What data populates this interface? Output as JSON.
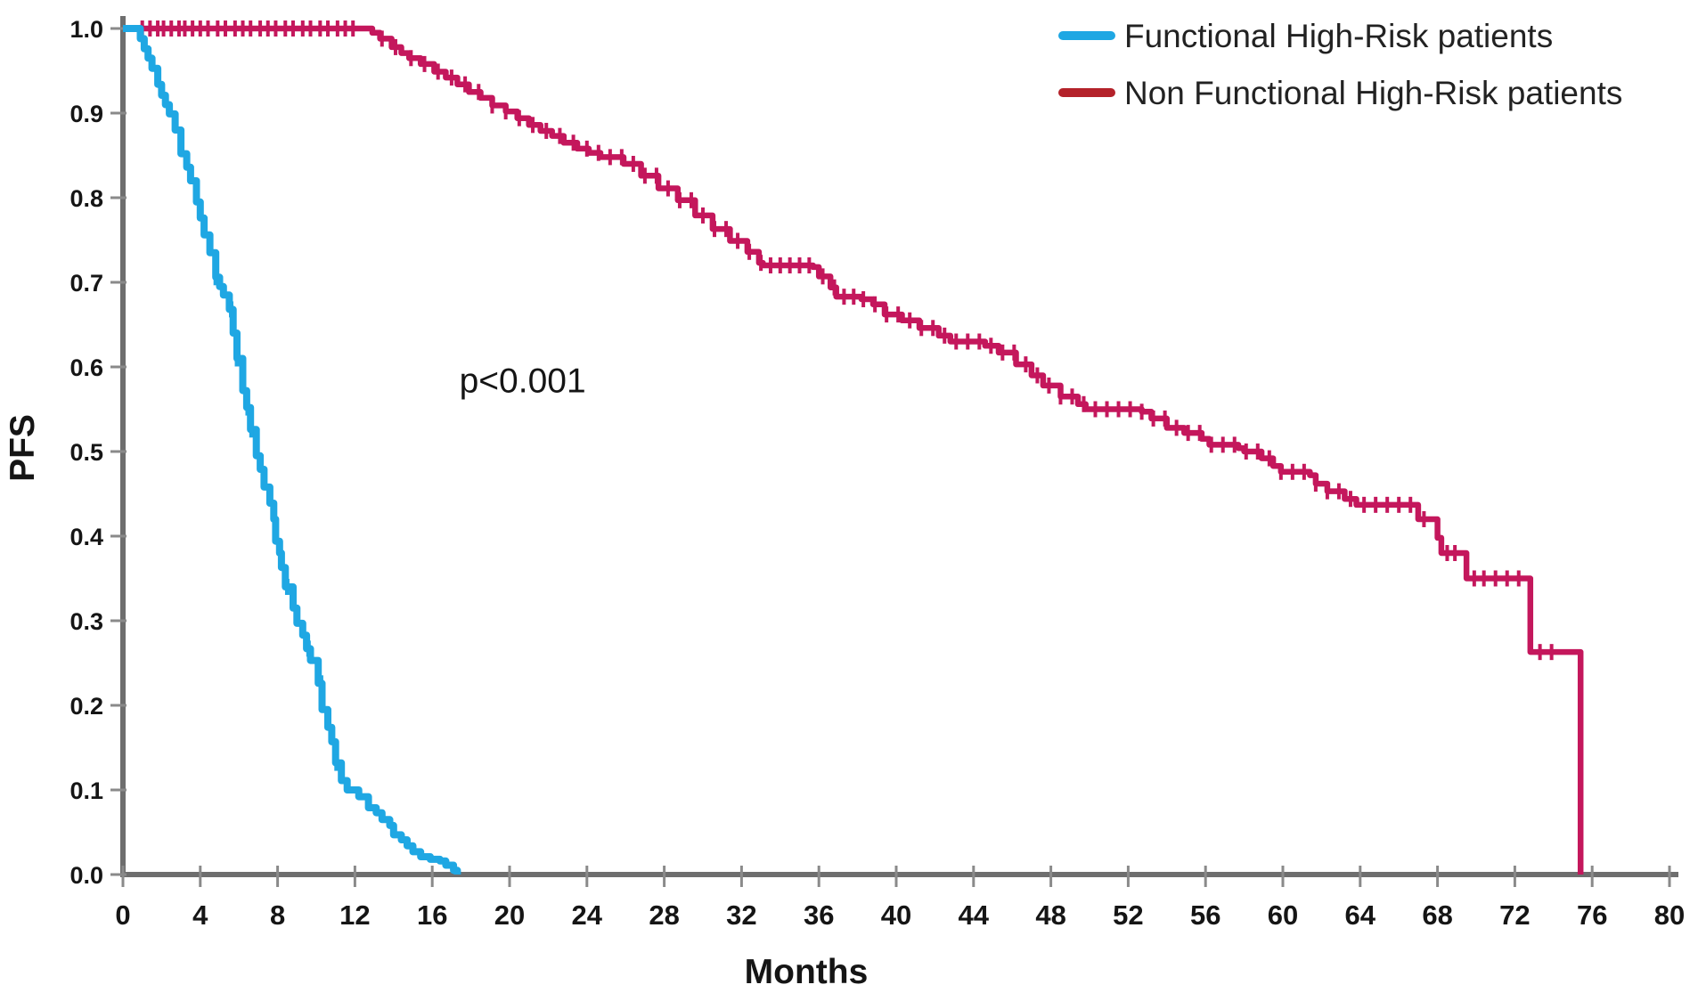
{
  "figure": {
    "y_axis_title": "PFS",
    "x_axis_title": "Months",
    "annotation_text": "p<0.001"
  },
  "legend": {
    "items": [
      {
        "label": "Functional High-Risk patients",
        "color": "#1FA7E3"
      },
      {
        "label": "Non Functional High-Risk patients",
        "color": "#B4222A"
      }
    ]
  },
  "colors": {
    "functional_curve": "#1FA7E3",
    "non_functional_curve": "#C4175C",
    "axis": "#6E6E6E",
    "tick": "#8A8A8A",
    "text": "#151515"
  },
  "chart_data": {
    "type": "line",
    "subtype": "kaplan-meier-step",
    "title": "",
    "xlabel": "Months",
    "ylabel": "PFS",
    "xlim": [
      0,
      80
    ],
    "ylim": [
      0.0,
      1.0
    ],
    "x_ticks": [
      0,
      4,
      8,
      12,
      16,
      20,
      24,
      28,
      32,
      36,
      40,
      44,
      48,
      52,
      56,
      60,
      64,
      68,
      72,
      76,
      80
    ],
    "y_ticks": [
      "0.0",
      "0.1",
      "0.2",
      "0.3",
      "0.4",
      "0.5",
      "0.6",
      "0.7",
      "0.8",
      "0.9",
      "1.0"
    ],
    "grid": false,
    "legend_position": "top-right",
    "annotation": {
      "text": "p<0.001",
      "x_month": 17.4,
      "y_pfs": 0.585
    },
    "series": [
      {
        "name": "Non Functional High-Risk patients",
        "color": "#C4175C",
        "legend_color": "#B4222A",
        "points": [
          [
            0,
            1.0
          ],
          [
            12.2,
            1.0
          ],
          [
            12.9,
            0.995
          ],
          [
            13.3,
            0.988
          ],
          [
            13.9,
            0.978
          ],
          [
            14.4,
            0.971
          ],
          [
            14.8,
            0.965
          ],
          [
            15.4,
            0.958
          ],
          [
            16.1,
            0.949
          ],
          [
            16.7,
            0.942
          ],
          [
            17.3,
            0.934
          ],
          [
            17.9,
            0.925
          ],
          [
            18.5,
            0.918
          ],
          [
            19.1,
            0.909
          ],
          [
            19.8,
            0.902
          ],
          [
            20.4,
            0.894
          ],
          [
            21.0,
            0.886
          ],
          [
            21.6,
            0.879
          ],
          [
            22.2,
            0.873
          ],
          [
            22.8,
            0.865
          ],
          [
            23.5,
            0.858
          ],
          [
            24.1,
            0.853
          ],
          [
            24.7,
            0.848
          ],
          [
            25.9,
            0.84
          ],
          [
            26.8,
            0.826
          ],
          [
            27.7,
            0.811
          ],
          [
            28.7,
            0.797
          ],
          [
            29.6,
            0.779
          ],
          [
            30.5,
            0.763
          ],
          [
            31.4,
            0.749
          ],
          [
            32.3,
            0.736
          ],
          [
            32.9,
            0.723
          ],
          [
            33.1,
            0.72
          ],
          [
            35.7,
            0.718
          ],
          [
            36.0,
            0.707
          ],
          [
            36.6,
            0.694
          ],
          [
            36.9,
            0.683
          ],
          [
            38.2,
            0.68
          ],
          [
            38.8,
            0.674
          ],
          [
            39.4,
            0.662
          ],
          [
            40.3,
            0.655
          ],
          [
            41.2,
            0.646
          ],
          [
            42.2,
            0.637
          ],
          [
            42.8,
            0.63
          ],
          [
            44.6,
            0.625
          ],
          [
            45.3,
            0.617
          ],
          [
            46.2,
            0.603
          ],
          [
            47.0,
            0.59
          ],
          [
            47.6,
            0.578
          ],
          [
            48.5,
            0.565
          ],
          [
            49.4,
            0.556
          ],
          [
            49.8,
            0.55
          ],
          [
            52.7,
            0.547
          ],
          [
            53.2,
            0.539
          ],
          [
            54.0,
            0.528
          ],
          [
            54.9,
            0.522
          ],
          [
            55.8,
            0.515
          ],
          [
            56.2,
            0.508
          ],
          [
            57.7,
            0.504
          ],
          [
            58.0,
            0.5
          ],
          [
            58.9,
            0.492
          ],
          [
            59.5,
            0.483
          ],
          [
            59.9,
            0.476
          ],
          [
            61.4,
            0.472
          ],
          [
            61.7,
            0.462
          ],
          [
            62.3,
            0.453
          ],
          [
            63.2,
            0.444
          ],
          [
            63.8,
            0.437
          ],
          [
            67.0,
            0.42
          ],
          [
            68.0,
            0.398
          ],
          [
            68.2,
            0.38
          ],
          [
            69.5,
            0.35
          ],
          [
            72.8,
            0.263
          ],
          [
            75.4,
            0.0
          ]
        ],
        "censor_marks_months": [
          1.0,
          1.4,
          1.8,
          2.1,
          2.5,
          2.9,
          3.2,
          3.6,
          4.0,
          4.4,
          4.9,
          5.3,
          5.8,
          6.2,
          6.6,
          7.1,
          7.5,
          7.9,
          8.4,
          8.8,
          9.3,
          9.7,
          10.2,
          10.6,
          11.1,
          11.5,
          11.9,
          13.4,
          14.1,
          14.9,
          15.6,
          16.3,
          17.0,
          17.7,
          18.4,
          19.1,
          19.8,
          20.5,
          21.2,
          21.9,
          22.6,
          23.3,
          24.0,
          24.6,
          25.2,
          25.8,
          26.4,
          27.0,
          27.6,
          28.2,
          28.8,
          29.4,
          30.0,
          30.6,
          31.2,
          31.8,
          32.4,
          33.0,
          33.5,
          34.0,
          34.5,
          35.0,
          35.5,
          36.2,
          36.8,
          37.3,
          37.8,
          38.3,
          38.9,
          39.5,
          40.1,
          40.7,
          41.3,
          41.9,
          42.5,
          43.1,
          43.7,
          44.3,
          44.9,
          45.5,
          46.1,
          46.7,
          47.3,
          47.9,
          48.5,
          49.1,
          49.7,
          50.3,
          50.9,
          51.5,
          52.1,
          52.7,
          53.3,
          53.9,
          54.5,
          55.1,
          55.7,
          56.3,
          56.9,
          57.5,
          58.1,
          58.7,
          59.3,
          59.9,
          60.5,
          61.1,
          61.7,
          62.3,
          62.9,
          63.5,
          64.2,
          64.8,
          65.4,
          66.0,
          66.6,
          67.3,
          68.5,
          68.9,
          69.9,
          70.4,
          71.0,
          71.6,
          72.2,
          73.3,
          73.9
        ]
      },
      {
        "name": "Functional High-Risk patients",
        "color": "#1FA7E3",
        "legend_color": "#1FA7E3",
        "points": [
          [
            0,
            1.0
          ],
          [
            0.7,
            1.0
          ],
          [
            0.9,
            0.988
          ],
          [
            1.1,
            0.976
          ],
          [
            1.3,
            0.965
          ],
          [
            1.5,
            0.953
          ],
          [
            1.8,
            0.934
          ],
          [
            2.0,
            0.921
          ],
          [
            2.2,
            0.91
          ],
          [
            2.4,
            0.899
          ],
          [
            2.7,
            0.88
          ],
          [
            3.0,
            0.852
          ],
          [
            3.3,
            0.836
          ],
          [
            3.5,
            0.82
          ],
          [
            3.8,
            0.795
          ],
          [
            4.0,
            0.776
          ],
          [
            4.2,
            0.756
          ],
          [
            4.5,
            0.735
          ],
          [
            4.8,
            0.706
          ],
          [
            5.0,
            0.695
          ],
          [
            5.2,
            0.685
          ],
          [
            5.5,
            0.668
          ],
          [
            5.7,
            0.64
          ],
          [
            5.9,
            0.61
          ],
          [
            6.2,
            0.572
          ],
          [
            6.4,
            0.552
          ],
          [
            6.6,
            0.526
          ],
          [
            6.9,
            0.495
          ],
          [
            7.1,
            0.479
          ],
          [
            7.3,
            0.458
          ],
          [
            7.6,
            0.439
          ],
          [
            7.8,
            0.42
          ],
          [
            7.9,
            0.394
          ],
          [
            8.1,
            0.38
          ],
          [
            8.2,
            0.363
          ],
          [
            8.4,
            0.34
          ],
          [
            8.8,
            0.315
          ],
          [
            9.0,
            0.297
          ],
          [
            9.3,
            0.283
          ],
          [
            9.5,
            0.267
          ],
          [
            9.7,
            0.253
          ],
          [
            10.1,
            0.226
          ],
          [
            10.3,
            0.195
          ],
          [
            10.6,
            0.174
          ],
          [
            10.8,
            0.157
          ],
          [
            11.0,
            0.132
          ],
          [
            11.3,
            0.111
          ],
          [
            11.6,
            0.1
          ],
          [
            12.2,
            0.092
          ],
          [
            12.7,
            0.079
          ],
          [
            13.1,
            0.073
          ],
          [
            13.4,
            0.065
          ],
          [
            13.8,
            0.058
          ],
          [
            14.0,
            0.047
          ],
          [
            14.4,
            0.041
          ],
          [
            14.7,
            0.034
          ],
          [
            15.0,
            0.027
          ],
          [
            15.4,
            0.021
          ],
          [
            15.9,
            0.018
          ],
          [
            16.4,
            0.016
          ],
          [
            16.7,
            0.011
          ],
          [
            17.1,
            0.005
          ],
          [
            17.3,
            0.0
          ]
        ],
        "censor_marks_months": [
          4.8,
          5.6,
          5.9,
          6.45,
          6.65,
          8.5,
          9.6,
          10.25,
          11.05
        ]
      }
    ]
  }
}
